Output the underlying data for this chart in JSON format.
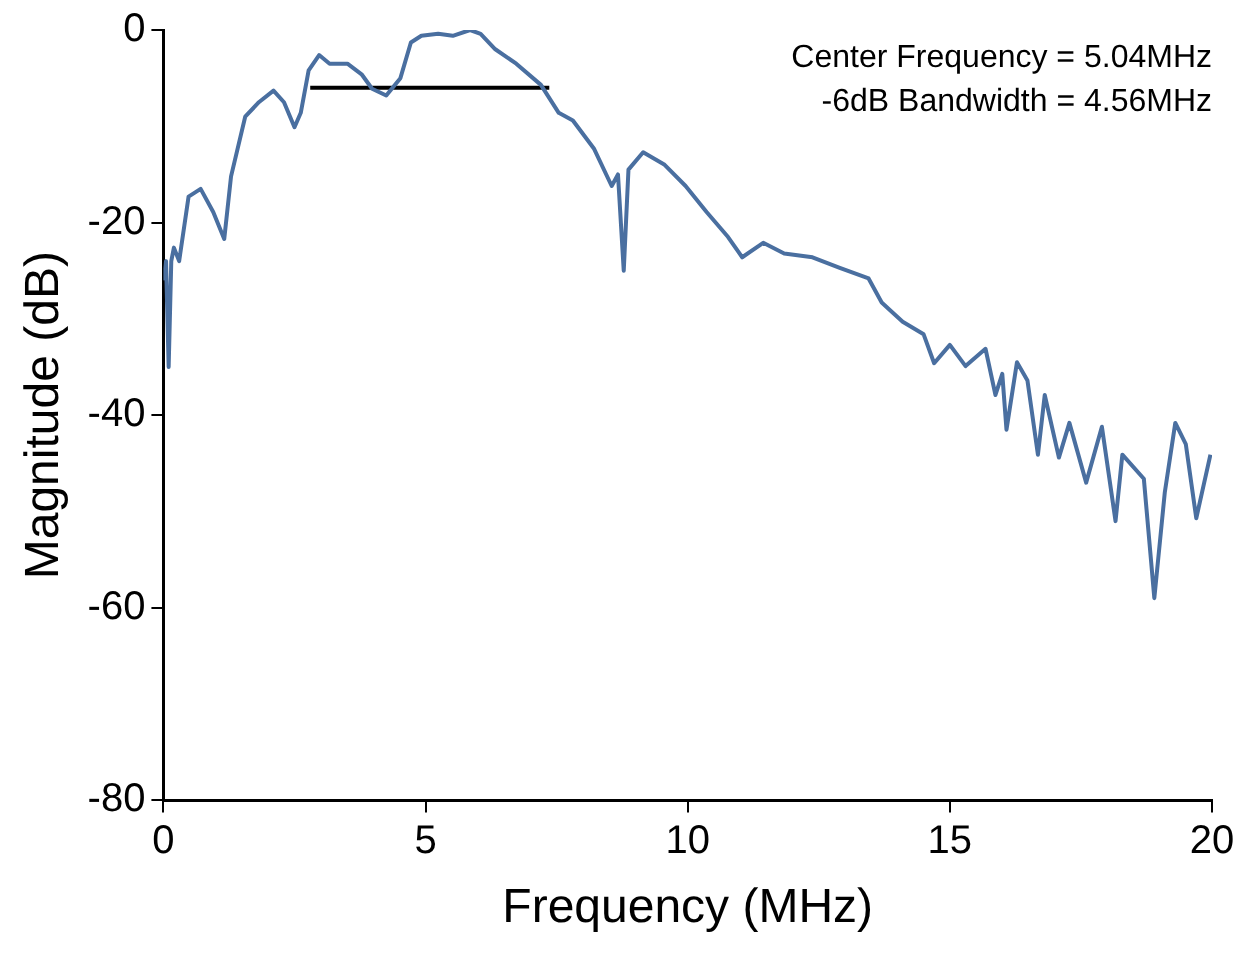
{
  "chart_data": {
    "type": "line",
    "xlabel": "Frequency (MHz)",
    "ylabel": "Magnitude (dB)",
    "annotations": [
      "Center Frequency = 5.04MHz",
      "-6dB Bandwidth = 4.56MHz"
    ],
    "xlim": [
      0,
      20
    ],
    "xticks": [
      0,
      5,
      10,
      15,
      20
    ],
    "ylim": [
      -80,
      0
    ],
    "yticks": [
      -80,
      -60,
      -40,
      -20,
      0
    ],
    "grid": false,
    "legend": false,
    "marker": "none",
    "line_style": "solid",
    "series": [
      {
        "color": "#4a6fa0",
        "x": [
          0,
          0.05,
          0.1,
          0.15,
          0.2,
          0.3,
          0.48,
          0.71,
          0.95,
          1.16,
          1.29,
          1.56,
          1.82,
          2.1,
          2.3,
          2.5,
          2.62,
          2.77,
          2.97,
          3.17,
          3.51,
          3.78,
          3.98,
          4.25,
          4.52,
          4.72,
          4.92,
          5.24,
          5.52,
          5.85,
          6.05,
          6.33,
          6.73,
          7.2,
          7.54,
          7.81,
          8.21,
          8.55,
          8.67,
          8.78,
          8.87,
          9.15,
          9.56,
          9.96,
          10.36,
          10.77,
          11.04,
          11.44,
          11.84,
          12.38,
          12.9,
          13.45,
          13.7,
          13.86,
          14.1,
          14.5,
          14.7,
          15.0,
          15.3,
          15.68,
          15.87,
          16.0,
          16.08,
          16.28,
          16.48,
          16.68,
          16.81,
          17.08,
          17.28,
          17.6,
          17.9,
          18.16,
          18.29,
          18.7,
          18.9,
          19.1,
          19.3,
          19.5,
          19.7,
          19.97
        ],
        "values": [
          -26,
          -24,
          -35,
          -24,
          -22.6,
          -24,
          -17.3,
          -16.5,
          -18.9,
          -21.7,
          -15.2,
          -9,
          -7.5,
          -6.3,
          -7.5,
          -10.1,
          -8.6,
          -4.2,
          -2.6,
          -3.5,
          -3.5,
          -4.6,
          -6.1,
          -6.8,
          -5,
          -1.3,
          -0.6,
          -0.4,
          -0.6,
          0,
          -0.4,
          -2,
          -3.5,
          -5.7,
          -8.6,
          -9.4,
          -12.3,
          -16.2,
          -15,
          -25,
          -14.5,
          -12.7,
          -14,
          -16.2,
          -18.9,
          -21.5,
          -23.6,
          -22.1,
          -23.2,
          -23.6,
          -24.7,
          -25.8,
          -28.3,
          -29.1,
          -30.3,
          -31.6,
          -34.6,
          -32.7,
          -34.9,
          -33.1,
          -37.9,
          -35.7,
          -41.5,
          -34.5,
          -36.4,
          -44.1,
          -37.9,
          -44.4,
          -40.8,
          -47,
          -41.2,
          -51,
          -44.1,
          -46.6,
          -59,
          -48,
          -40.8,
          -43,
          -50.7,
          -44.1
        ]
      },
      {
        "color": "#000000",
        "x": [
          2.8,
          7.36
        ],
        "values": [
          -6,
          -6
        ]
      }
    ]
  }
}
